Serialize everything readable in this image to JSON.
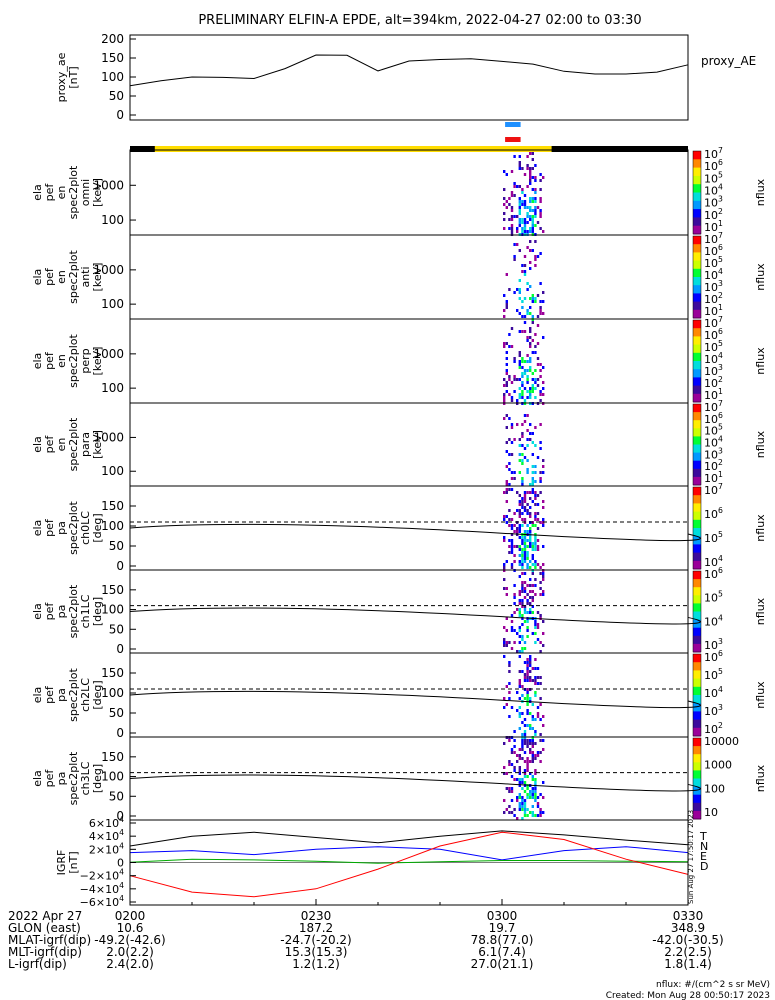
{
  "title": "PRELIMINARY ELFIN-A EPDE, alt=394km, 2022-04-27 02:00 to 03:30",
  "colors": {
    "nflux_colorbar": [
      "#9a0099",
      "#3c0a9c",
      "#0000ff",
      "#0099ff",
      "#00dddd",
      "#00ff33",
      "#ccff00",
      "#ffee00",
      "#ff8800",
      "#ff0000"
    ],
    "bar_yellow": "#ffdd00",
    "bar_black": "#000000",
    "marker_blue": "#1e90ff",
    "marker_red": "#ee1111",
    "grf_T": "#000000",
    "grf_N": "#0000ff",
    "grf_E": "#00aa00",
    "grf_D": "#ff0000"
  },
  "panels": [
    {
      "id": "ae",
      "ylabel_lines": [
        "proxy_ae",
        "[nT]"
      ],
      "right_label": "proxy_AE",
      "yticks": [
        "200",
        "150",
        "100",
        "50",
        "0"
      ]
    },
    {
      "id": "omni",
      "ylabel_lines": [
        "ela",
        "pef",
        "en",
        "spec2plot",
        "omni",
        "[keV]"
      ],
      "yticks": [
        "1000",
        "100"
      ],
      "cb_ticks": [
        "10^7",
        "10^6",
        "10^5",
        "10^4",
        "10^3",
        "10^2",
        "10^1"
      ],
      "cb_label": "nflux"
    },
    {
      "id": "anti",
      "ylabel_lines": [
        "ela",
        "pef",
        "en",
        "spec2plot",
        "anti",
        "[keV]"
      ],
      "yticks": [
        "1000",
        "100"
      ],
      "cb_ticks": [
        "10^7",
        "10^6",
        "10^5",
        "10^4",
        "10^3",
        "10^2",
        "10^1"
      ],
      "cb_label": "nflux"
    },
    {
      "id": "perp",
      "ylabel_lines": [
        "ela",
        "pef",
        "en",
        "spec2plot",
        "perp",
        "[keV]"
      ],
      "yticks": [
        "1000",
        "100"
      ],
      "cb_ticks": [
        "10^7",
        "10^6",
        "10^5",
        "10^4",
        "10^3",
        "10^2",
        "10^1"
      ],
      "cb_label": "nflux"
    },
    {
      "id": "para",
      "ylabel_lines": [
        "ela",
        "pef",
        "en",
        "spec2plot",
        "para",
        "[keV]"
      ],
      "yticks": [
        "1000",
        "100"
      ],
      "cb_ticks": [
        "10^7",
        "10^6",
        "10^5",
        "10^4",
        "10^3",
        "10^2",
        "10^1"
      ],
      "cb_label": "nflux"
    },
    {
      "id": "ch0",
      "ylabel_lines": [
        "ela",
        "pef",
        "pa",
        "spec2plot",
        "ch0LC",
        "[deg]"
      ],
      "yticks": [
        "150",
        "100",
        "50",
        "0"
      ],
      "cb_ticks": [
        "10^7",
        "10^6",
        "10^5",
        "10^4"
      ],
      "cb_label": "nflux"
    },
    {
      "id": "ch1",
      "ylabel_lines": [
        "ela",
        "pef",
        "pa",
        "spec2plot",
        "ch1LC",
        "[deg]"
      ],
      "yticks": [
        "150",
        "100",
        "50",
        "0"
      ],
      "cb_ticks": [
        "10^6",
        "10^5",
        "10^4",
        "10^3"
      ],
      "cb_label": "nflux"
    },
    {
      "id": "ch2",
      "ylabel_lines": [
        "ela",
        "pef",
        "pa",
        "spec2plot",
        "ch2LC",
        "[deg]"
      ],
      "yticks": [
        "150",
        "100",
        "50",
        "0"
      ],
      "cb_ticks": [
        "10^6",
        "10^5",
        "10^4",
        "10^3",
        "10^2"
      ],
      "cb_label": "nflux"
    },
    {
      "id": "ch3",
      "ylabel_lines": [
        "ela",
        "pef",
        "pa",
        "spec2plot",
        "ch3LC",
        "[deg]"
      ],
      "yticks": [
        "150",
        "100",
        "50",
        "0"
      ],
      "cb_ticks": [
        "10000",
        "1000",
        "100",
        "10"
      ],
      "cb_label": "nflux"
    },
    {
      "id": "igrf",
      "ylabel_lines": [
        "IGRF",
        "[nT]"
      ],
      "yticks": [
        "6×10^4",
        "4×10^4",
        "2×10^4",
        "0",
        "−2×10^4",
        "−4×10^4",
        "−6×10^4"
      ],
      "legend": [
        "T",
        "N",
        "E",
        "D"
      ]
    }
  ],
  "side_stamp": "Sun Aug 27 17:50:17 2023",
  "footer": {
    "rows": [
      {
        "label": "2022 Apr 27",
        "values": [
          "0200",
          "0230",
          "0300",
          "0330"
        ]
      },
      {
        "label": "GLON (east)",
        "values": [
          "10.6",
          "187.2",
          "19.7",
          "348.9"
        ]
      },
      {
        "label": "MLAT-igrf(dip)",
        "values": [
          "-49.2(-42.6)",
          "-24.7(-20.2)",
          "78.8(77.0)",
          "-42.0(-30.5)"
        ]
      },
      {
        "label": "MLT-igrf(dip)",
        "values": [
          "2.0(2.2)",
          "15.3(15.3)",
          "6.1(7.4)",
          "2.2(2.5)"
        ]
      },
      {
        "label": "L-igrf(dip)",
        "values": [
          "2.4(2.0)",
          "1.2(1.2)",
          "27.0(21.1)",
          "1.8(1.4)"
        ]
      }
    ],
    "units_note": "nflux: #/(cm^2 s sr MeV)",
    "created": "Created: Mon Aug 28 00:50:17 2023"
  },
  "chart_data": {
    "type": "line",
    "x_range": [
      "2022-04-27 02:00",
      "2022-04-27 03:30"
    ],
    "proxy_ae": {
      "ylim": [
        0,
        200
      ],
      "x_minutes": [
        0,
        5,
        10,
        15,
        20,
        25,
        30,
        35,
        40,
        45,
        50,
        55,
        60,
        65,
        70,
        75,
        80,
        85,
        90
      ],
      "values": [
        77,
        90,
        100,
        99,
        96,
        122,
        158,
        157,
        116,
        142,
        146,
        148,
        141,
        134,
        115,
        108,
        108,
        113,
        132
      ]
    },
    "burst_interval_minutes": [
      60.5,
      63.0
    ],
    "science_zone_minutes": [
      4,
      68
    ],
    "ch_lc_dashed_deg": 110,
    "igrf": {
      "ylim": [
        -60000,
        60000
      ],
      "x_minutes": [
        0,
        10,
        20,
        30,
        40,
        50,
        60,
        70,
        80,
        90
      ],
      "T": [
        25000,
        40000,
        46000,
        38000,
        30000,
        40000,
        48000,
        42000,
        34000,
        27000
      ],
      "N": [
        15000,
        18000,
        12000,
        20000,
        24000,
        20000,
        4000,
        18000,
        24000,
        15000
      ],
      "E": [
        500,
        5000,
        4000,
        2000,
        -1000,
        1000,
        3000,
        3000,
        2000,
        1000
      ],
      "D": [
        -20000,
        -45000,
        -52000,
        -40000,
        -10000,
        25000,
        46000,
        35000,
        5000,
        -18000
      ]
    }
  }
}
